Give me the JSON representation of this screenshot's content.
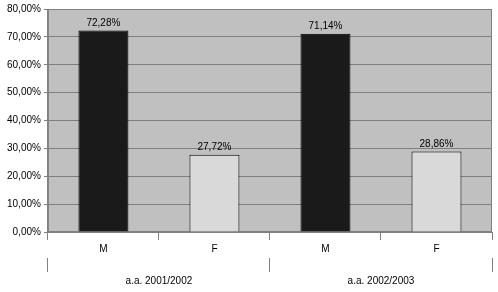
{
  "chart_data": {
    "type": "bar",
    "categories": [
      "M",
      "F",
      "M",
      "F"
    ],
    "group_labels": [
      "a.a. 2001/2002",
      "a.a. 2002/2003"
    ],
    "values": [
      72.28,
      27.72,
      71.14,
      28.86
    ],
    "value_labels": [
      "72,28%",
      "27,72%",
      "71,14%",
      "28,86%"
    ],
    "colors": [
      "#1a1a1a",
      "#d9d9d9",
      "#1a1a1a",
      "#d9d9d9"
    ],
    "ylim": [
      0,
      80
    ],
    "yticks": [
      {
        "value": 0,
        "label": "0,00%"
      },
      {
        "value": 10,
        "label": "10,00%"
      },
      {
        "value": 20,
        "label": "20,00%"
      },
      {
        "value": 30,
        "label": "30,00%"
      },
      {
        "value": 40,
        "label": "40,00%"
      },
      {
        "value": 50,
        "label": "50,00%"
      },
      {
        "value": 60,
        "label": "60,00%"
      },
      {
        "value": 70,
        "label": "70,00%"
      },
      {
        "value": 80,
        "label": "80,00%"
      }
    ],
    "grid": true,
    "data_labels": true
  }
}
